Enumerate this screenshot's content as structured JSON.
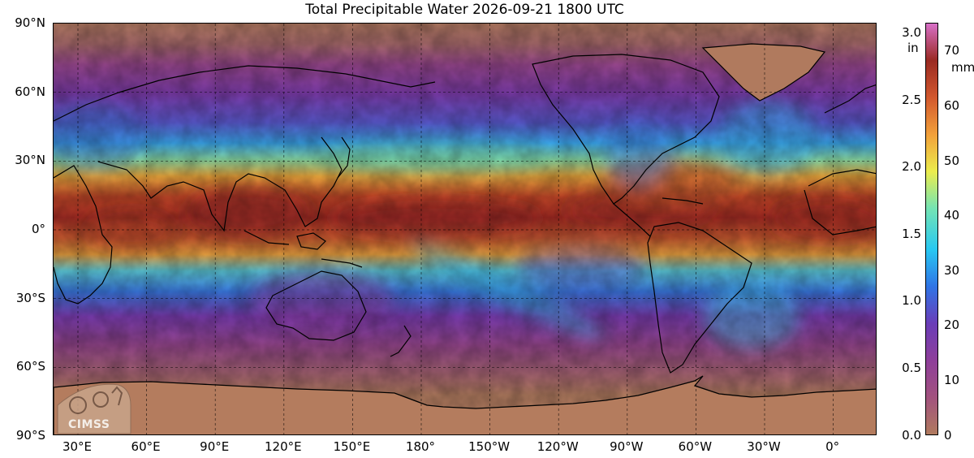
{
  "title": "Total Precipitable Water  2026-09-21 1800 UTC",
  "lat_labels": [
    "90°N",
    "60°N",
    "30°N",
    "0°",
    "30°S",
    "60°S",
    "90°S"
  ],
  "lon_labels": [
    "30°E",
    "60°E",
    "90°E",
    "120°E",
    "150°E",
    "180°",
    "150°W",
    "120°W",
    "90°W",
    "60°W",
    "30°W",
    "0°"
  ],
  "colorbar": {
    "in_unit": "in",
    "mm_unit": "mm",
    "in_ticks": [
      "3.0",
      "2.5",
      "2.0",
      "1.5",
      "1.0",
      "0.5",
      "0.0"
    ],
    "mm_ticks": [
      "70",
      "60",
      "50",
      "40",
      "30",
      "20",
      "10",
      "0"
    ],
    "scale_mm": [
      0,
      75
    ],
    "colors": [
      "#b07a5e",
      "#a2527e",
      "#8e3e9a",
      "#6a3db8",
      "#2f74e6",
      "#28c8f2",
      "#74e4b4",
      "#ecec4c",
      "#f2a03a",
      "#d2582e",
      "#9a2a22",
      "#d870c8"
    ]
  },
  "logo": {
    "text": "CIMSS"
  }
}
